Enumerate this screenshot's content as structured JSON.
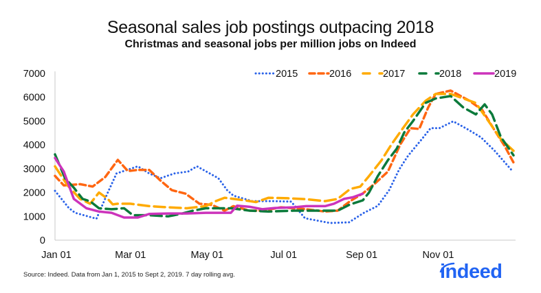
{
  "chart_data": {
    "type": "line",
    "title": "Seasonal sales job postings outpacing 2018",
    "subtitle": "Christmas and seasonal jobs per million jobs on Indeed",
    "xlabel": "",
    "ylabel": "",
    "x_unit": "day of year",
    "xlim": [
      0,
      365
    ],
    "ylim": [
      0,
      7000
    ],
    "y_ticks": [
      "0",
      "1000",
      "2000",
      "3000",
      "4000",
      "5000",
      "6000",
      "7000"
    ],
    "y_tick_values": [
      0,
      1000,
      2000,
      3000,
      4000,
      5000,
      6000,
      7000
    ],
    "x_ticks": [
      "Jan 01",
      "Mar 01",
      "May 01",
      "Jul 01",
      "Sep 01",
      "Nov 01"
    ],
    "x_tick_values": [
      0,
      59,
      120,
      181,
      243,
      304
    ],
    "grid": false,
    "legend_position": "top-right",
    "series": [
      {
        "name": "2015",
        "color": "#2a62e8",
        "style": "dotted",
        "points": [
          [
            0,
            2070
          ],
          [
            11,
            1350
          ],
          [
            16,
            1150
          ],
          [
            33,
            900
          ],
          [
            42,
            2000
          ],
          [
            49,
            2800
          ],
          [
            66,
            3100
          ],
          [
            75,
            2800
          ],
          [
            84,
            2600
          ],
          [
            95,
            2800
          ],
          [
            106,
            2880
          ],
          [
            113,
            3100
          ],
          [
            130,
            2600
          ],
          [
            137,
            2100
          ],
          [
            142,
            1870
          ],
          [
            157,
            1640
          ],
          [
            173,
            1640
          ],
          [
            188,
            1620
          ],
          [
            199,
            920
          ],
          [
            219,
            720
          ],
          [
            234,
            750
          ],
          [
            246,
            1150
          ],
          [
            257,
            1440
          ],
          [
            266,
            2100
          ],
          [
            274,
            2970
          ],
          [
            281,
            3540
          ],
          [
            292,
            4240
          ],
          [
            299,
            4700
          ],
          [
            306,
            4700
          ],
          [
            317,
            4990
          ],
          [
            328,
            4670
          ],
          [
            339,
            4320
          ],
          [
            350,
            3750
          ],
          [
            363,
            2970
          ]
        ]
      },
      {
        "name": "2016",
        "color": "#ff6611",
        "style": "dashed",
        "points": [
          [
            0,
            2700
          ],
          [
            7,
            2300
          ],
          [
            20,
            2350
          ],
          [
            30,
            2250
          ],
          [
            40,
            2650
          ],
          [
            50,
            3370
          ],
          [
            58,
            2900
          ],
          [
            66,
            2950
          ],
          [
            75,
            2950
          ],
          [
            84,
            2500
          ],
          [
            93,
            2100
          ],
          [
            104,
            1950
          ],
          [
            115,
            1530
          ],
          [
            125,
            1480
          ],
          [
            135,
            1240
          ],
          [
            142,
            1430
          ],
          [
            155,
            1240
          ],
          [
            165,
            1240
          ],
          [
            180,
            1380
          ],
          [
            200,
            1300
          ],
          [
            215,
            1200
          ],
          [
            225,
            1240
          ],
          [
            235,
            1640
          ],
          [
            245,
            1960
          ],
          [
            255,
            2390
          ],
          [
            265,
            2880
          ],
          [
            275,
            4030
          ],
          [
            283,
            4700
          ],
          [
            290,
            4670
          ],
          [
            297,
            5560
          ],
          [
            303,
            6140
          ],
          [
            315,
            6280
          ],
          [
            330,
            5850
          ],
          [
            340,
            5470
          ],
          [
            350,
            4610
          ],
          [
            358,
            3950
          ],
          [
            365,
            3260
          ]
        ]
      },
      {
        "name": "2017",
        "color": "#ffaa00",
        "style": "longdash",
        "points": [
          [
            0,
            3100
          ],
          [
            10,
            2300
          ],
          [
            20,
            1730
          ],
          [
            28,
            1530
          ],
          [
            35,
            2000
          ],
          [
            42,
            1730
          ],
          [
            46,
            1500
          ],
          [
            50,
            1530
          ],
          [
            60,
            1530
          ],
          [
            75,
            1430
          ],
          [
            90,
            1380
          ],
          [
            105,
            1340
          ],
          [
            120,
            1430
          ],
          [
            128,
            1640
          ],
          [
            135,
            1780
          ],
          [
            150,
            1680
          ],
          [
            160,
            1600
          ],
          [
            170,
            1780
          ],
          [
            185,
            1760
          ],
          [
            200,
            1720
          ],
          [
            215,
            1640
          ],
          [
            225,
            1730
          ],
          [
            235,
            2150
          ],
          [
            243,
            2250
          ],
          [
            250,
            2690
          ],
          [
            260,
            3360
          ],
          [
            268,
            4030
          ],
          [
            277,
            4700
          ],
          [
            285,
            5280
          ],
          [
            295,
            5850
          ],
          [
            303,
            6140
          ],
          [
            315,
            6140
          ],
          [
            325,
            5950
          ],
          [
            335,
            5760
          ],
          [
            345,
            5000
          ],
          [
            355,
            4240
          ],
          [
            365,
            3750
          ]
        ]
      },
      {
        "name": "2018",
        "color": "#0b7a3b",
        "style": "longdash",
        "points": [
          [
            0,
            3600
          ],
          [
            8,
            2600
          ],
          [
            15,
            2200
          ],
          [
            22,
            1730
          ],
          [
            28,
            1630
          ],
          [
            35,
            1340
          ],
          [
            45,
            1300
          ],
          [
            55,
            1340
          ],
          [
            62,
            1050
          ],
          [
            75,
            1050
          ],
          [
            90,
            1000
          ],
          [
            100,
            1100
          ],
          [
            110,
            1240
          ],
          [
            120,
            1340
          ],
          [
            130,
            1340
          ],
          [
            140,
            1340
          ],
          [
            155,
            1240
          ],
          [
            170,
            1200
          ],
          [
            190,
            1240
          ],
          [
            210,
            1240
          ],
          [
            225,
            1240
          ],
          [
            235,
            1500
          ],
          [
            245,
            1670
          ],
          [
            250,
            2000
          ],
          [
            257,
            2690
          ],
          [
            265,
            3360
          ],
          [
            272,
            3840
          ],
          [
            278,
            4520
          ],
          [
            285,
            5000
          ],
          [
            295,
            5760
          ],
          [
            303,
            5950
          ],
          [
            315,
            6050
          ],
          [
            325,
            5570
          ],
          [
            335,
            5280
          ],
          [
            342,
            5700
          ],
          [
            348,
            5280
          ],
          [
            355,
            4320
          ],
          [
            360,
            3950
          ],
          [
            365,
            3560
          ]
        ]
      },
      {
        "name": "2019",
        "color": "#cc33bb",
        "style": "solid",
        "points": [
          [
            0,
            3450
          ],
          [
            7,
            2880
          ],
          [
            15,
            1730
          ],
          [
            25,
            1340
          ],
          [
            35,
            1200
          ],
          [
            45,
            1150
          ],
          [
            55,
            950
          ],
          [
            66,
            950
          ],
          [
            75,
            1100
          ],
          [
            90,
            1120
          ],
          [
            105,
            1120
          ],
          [
            120,
            1150
          ],
          [
            130,
            1150
          ],
          [
            140,
            1150
          ],
          [
            145,
            1450
          ],
          [
            155,
            1400
          ],
          [
            165,
            1300
          ],
          [
            175,
            1350
          ],
          [
            190,
            1380
          ],
          [
            200,
            1430
          ],
          [
            215,
            1430
          ],
          [
            222,
            1530
          ],
          [
            230,
            1730
          ],
          [
            237,
            1800
          ],
          [
            245,
            1950
          ]
        ]
      }
    ]
  },
  "source": "Source: Indeed. Data from Jan 1, 2015 to Sept 2, 2019. 7 day rolling avg.",
  "logo": {
    "text": "indeed",
    "color": "#2164f3"
  }
}
